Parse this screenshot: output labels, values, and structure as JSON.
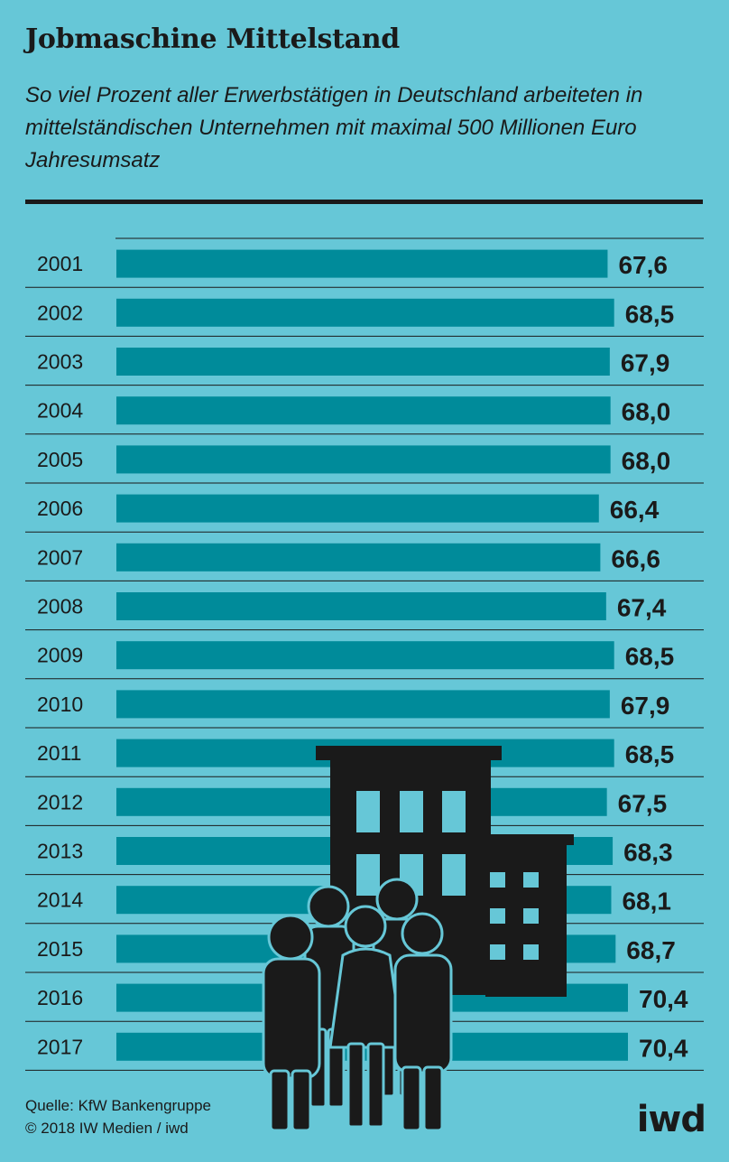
{
  "header": {
    "title": "Jobmaschine Mittelstand",
    "subtitle": "So viel Prozent aller Erwerbstätigen in Deutschland arbeiteten in mittelständischen Unternehmen mit maximal 500 Millionen Euro Jahresumsatz"
  },
  "colors": {
    "background": "#66c7d7",
    "bar": "#008b9a",
    "text": "#1a1a1a",
    "gridline": "#1a1a1a"
  },
  "chart_data": {
    "type": "bar",
    "orientation": "horizontal",
    "title": "Jobmaschine Mittelstand",
    "subtitle": "So viel Prozent aller Erwerbstätigen in Deutschland arbeiteten in mittelständischen Unternehmen mit maximal 500 Millionen Euro Jahresumsatz",
    "categories": [
      "2001",
      "2002",
      "2003",
      "2004",
      "2005",
      "2006",
      "2007",
      "2008",
      "2009",
      "2010",
      "2011",
      "2012",
      "2013",
      "2014",
      "2015",
      "2016",
      "2017"
    ],
    "values": [
      67.6,
      68.5,
      67.9,
      68.0,
      68.0,
      66.4,
      66.6,
      67.4,
      68.5,
      67.9,
      68.5,
      67.5,
      68.3,
      68.1,
      68.7,
      70.4,
      70.4
    ],
    "value_labels": [
      "67,6",
      "68,5",
      "67,9",
      "68,0",
      "68,0",
      "66,4",
      "66,6",
      "67,4",
      "68,5",
      "67,9",
      "68,5",
      "67,5",
      "68,3",
      "68,1",
      "68,7",
      "70,4",
      "70,4"
    ],
    "unit": "Prozent",
    "grid": true,
    "legend": "none"
  },
  "illustration": {
    "icons": [
      "office-building-icon",
      "people-group-icon"
    ]
  },
  "footer": {
    "source": "Quelle: KfW Bankengruppe",
    "copyright": "© 2018 IW Medien / iwd",
    "brand": "iwd"
  }
}
